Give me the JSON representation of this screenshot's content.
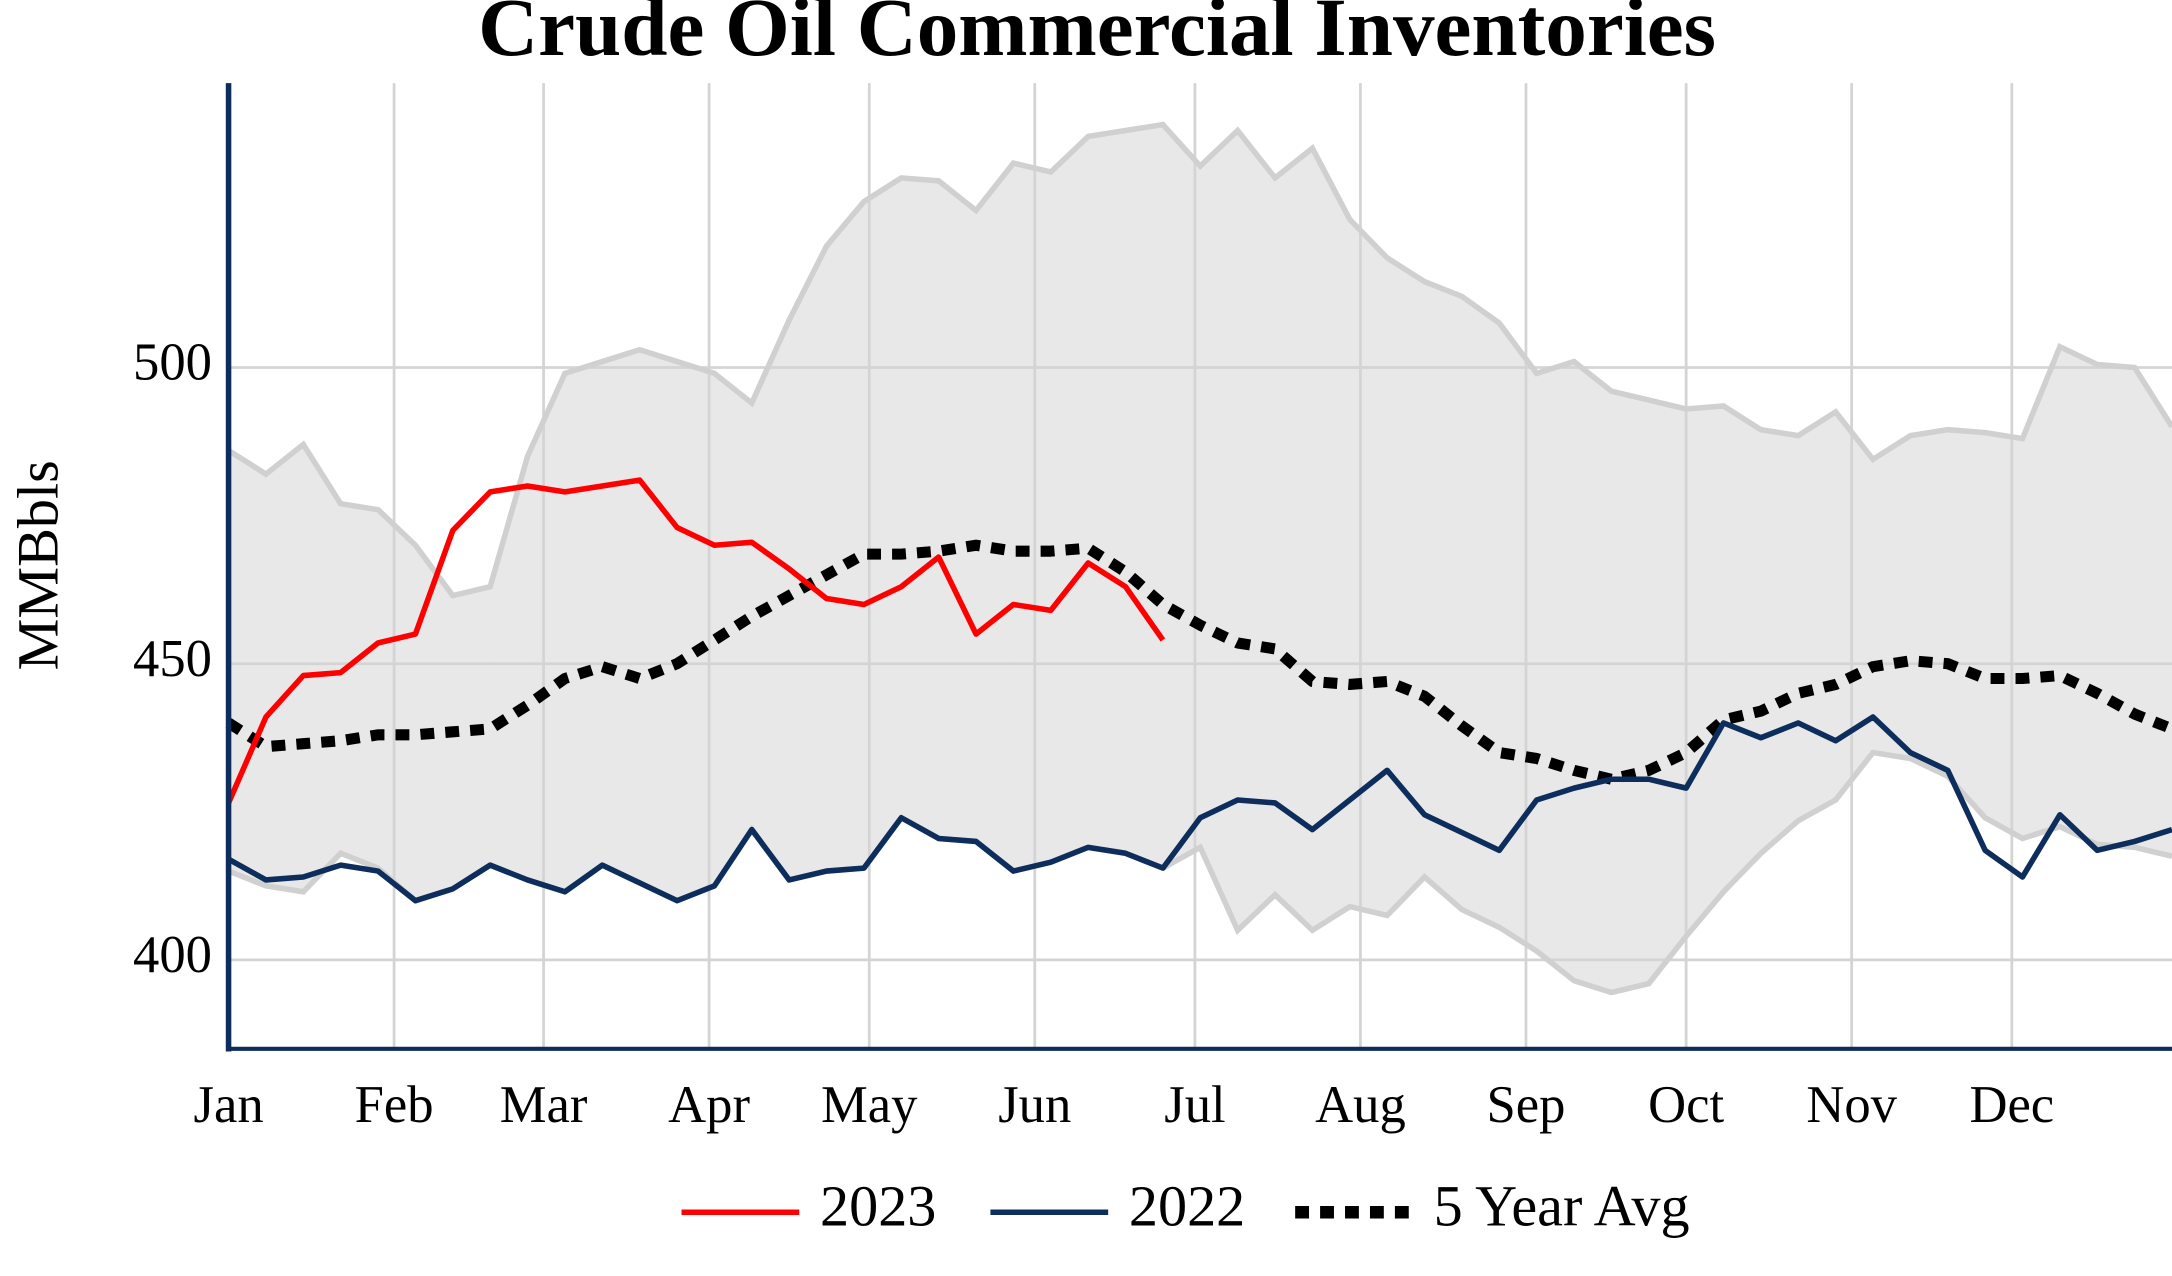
{
  "chart_data": {
    "type": "line",
    "title": "Crude Oil Commercial Inventories",
    "y_label": "MMBbls",
    "x": [
      0,
      7,
      14,
      21,
      28,
      35,
      42,
      49,
      56,
      63,
      70,
      77,
      84,
      91,
      98,
      105,
      112,
      119,
      126,
      133,
      140,
      147,
      154,
      161,
      168,
      175,
      182,
      189,
      196,
      203,
      210,
      217,
      224,
      231,
      238,
      245,
      252,
      259,
      266,
      273,
      280,
      287,
      294,
      301,
      308,
      315,
      322,
      329,
      336,
      343,
      350,
      357,
      364
    ],
    "xlim": [
      0,
      364
    ],
    "xticks": [
      {
        "value": 0,
        "label": "Jan"
      },
      {
        "value": 31,
        "label": "Feb"
      },
      {
        "value": 59,
        "label": "Mar"
      },
      {
        "value": 90,
        "label": "Apr"
      },
      {
        "value": 120,
        "label": "May"
      },
      {
        "value": 151,
        "label": "Jun"
      },
      {
        "value": 181,
        "label": "Jul"
      },
      {
        "value": 212,
        "label": "Aug"
      },
      {
        "value": 243,
        "label": "Sep"
      },
      {
        "value": 273,
        "label": "Oct"
      },
      {
        "value": 304,
        "label": "Nov"
      },
      {
        "value": 334,
        "label": "Dec"
      }
    ],
    "ylim": [
      385,
      548
    ],
    "yticks": [
      400,
      450,
      500
    ],
    "grid": true,
    "band": {
      "color": "#e8e8e8",
      "edge_color": "#d0d0d0",
      "upper": [
        486,
        482,
        487,
        477,
        476,
        470,
        461.5,
        463,
        485,
        499,
        501,
        503,
        501,
        499,
        494,
        508,
        520.5,
        528,
        532,
        531.5,
        526.5,
        534.5,
        533,
        539,
        540,
        541,
        534,
        540,
        532,
        537,
        525,
        518.5,
        514.5,
        512,
        507.5,
        499,
        501,
        496,
        494.5,
        493,
        493.5,
        489.5,
        488.5,
        492.5,
        484.5,
        488.5,
        489.5,
        489,
        488,
        503.5,
        500.5,
        500,
        490
      ],
      "lower": [
        415,
        412.5,
        411.5,
        418,
        415.5,
        410,
        412,
        416,
        413.5,
        411.5,
        416,
        413,
        410,
        412.5,
        422,
        413.5,
        415,
        415.5,
        424,
        420.5,
        420,
        415,
        416.5,
        419,
        418,
        415.5,
        419,
        405,
        411,
        405,
        409,
        407.5,
        414,
        408.5,
        405.5,
        401.5,
        396.5,
        394.5,
        396,
        404,
        411.5,
        418,
        423.5,
        427,
        435,
        434,
        431,
        424,
        420.5,
        422.5,
        419.5,
        419,
        417.5
      ]
    },
    "series": [
      {
        "name": "2023",
        "color": "#ff0000",
        "dashed": false,
        "values": [
          426.5,
          441,
          448,
          448.5,
          453.5,
          455,
          472.5,
          479,
          480,
          479,
          480,
          481,
          473,
          470,
          470.5,
          466,
          461,
          460,
          463,
          468,
          455,
          460,
          459,
          467,
          463,
          454,
          null,
          null,
          null,
          null,
          null,
          null,
          null,
          null,
          null,
          null,
          null,
          null,
          null,
          null,
          null,
          null,
          null,
          null,
          null,
          null,
          null,
          null,
          null,
          null,
          null,
          null,
          null
        ]
      },
      {
        "name": "2022",
        "color": "#0d2d5c",
        "dashed": false,
        "values": [
          417,
          413.5,
          414,
          416,
          415,
          410,
          412,
          416,
          413.5,
          411.5,
          416,
          413,
          410,
          412.5,
          422,
          413.5,
          415,
          415.5,
          424,
          420.5,
          420,
          415,
          416.5,
          419,
          418,
          415.5,
          424,
          427,
          426.5,
          422,
          427,
          432,
          424.5,
          421.5,
          418.5,
          427,
          429,
          430.5,
          430.5,
          429,
          440,
          437.5,
          440,
          437,
          441,
          435,
          432,
          418.5,
          414,
          424.5,
          418.5,
          420,
          422
        ]
      },
      {
        "name": "5 Year Avg",
        "color": "#000000",
        "dashed": true,
        "values": [
          440,
          436,
          436.5,
          437,
          438,
          438,
          438.5,
          439,
          443,
          447.5,
          449.5,
          447.5,
          450,
          454,
          458,
          461.5,
          465,
          468.5,
          468.5,
          469,
          470,
          469,
          469,
          469.5,
          465.5,
          460,
          456.5,
          453.5,
          452.5,
          447,
          446.5,
          447,
          444.5,
          439.5,
          435,
          434,
          432,
          430.5,
          432,
          435,
          440.5,
          442,
          445,
          446.5,
          449.5,
          450.5,
          450,
          447.5,
          447.5,
          448,
          445,
          441.5,
          439
        ]
      }
    ]
  }
}
